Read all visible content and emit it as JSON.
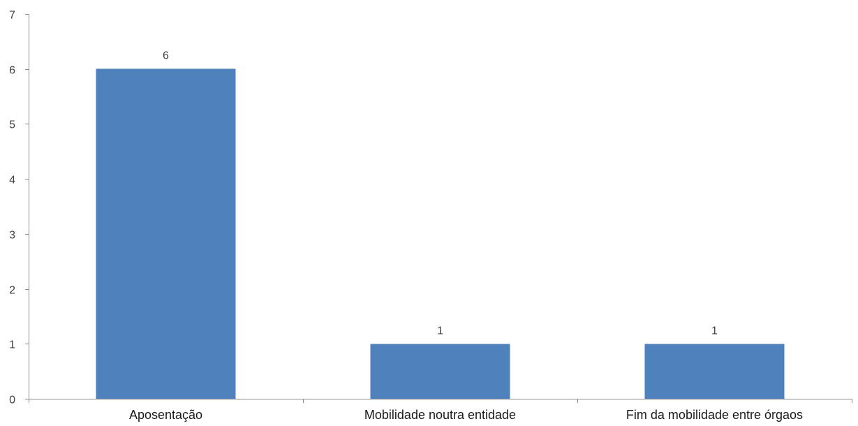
{
  "chart_data": {
    "type": "bar",
    "title": "",
    "xlabel": "",
    "ylabel": "",
    "categories": [
      "Aposentação",
      "Mobilidade noutra entidade",
      "Fim da mobilidade entre órgaos"
    ],
    "values": [
      6,
      1,
      1
    ],
    "data_labels": [
      "6",
      "1",
      "1"
    ],
    "ylim": [
      0,
      7
    ],
    "y_ticks": [
      "0",
      "1",
      "2",
      "3",
      "4",
      "5",
      "6",
      "7"
    ],
    "grid": false,
    "legend": "none",
    "bar_color": "#4f81bd"
  }
}
